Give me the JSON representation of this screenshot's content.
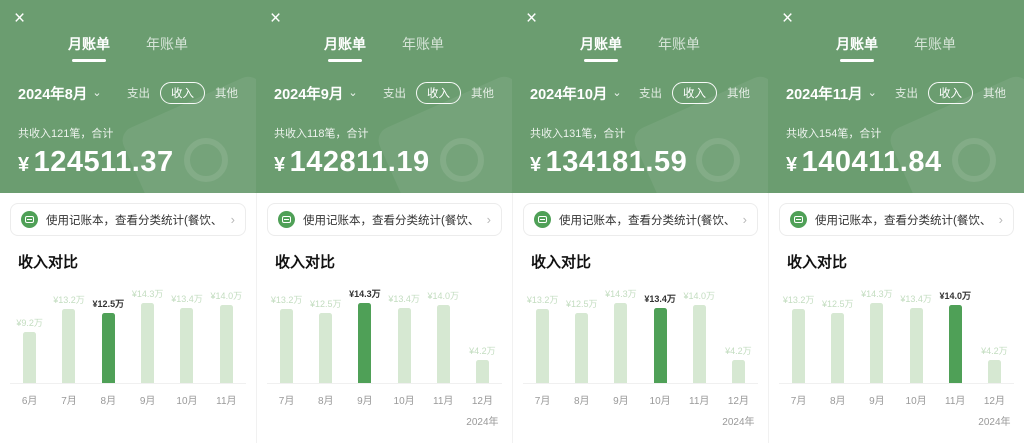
{
  "shared": {
    "icons": {
      "close": "×",
      "chevron_down": "⌄",
      "chevron_right": "›"
    },
    "tabs": {
      "monthly": "月账单",
      "yearly": "年账单"
    },
    "filters": {
      "expense": "支出",
      "income": "收入",
      "other": "其他"
    },
    "banner": {
      "text": "使用记账本，查看分类统计(餐饮、交通等)"
    },
    "section_title": "收入对比",
    "currency": "¥"
  },
  "colors": {
    "header_green": "#6b9d70",
    "accent_green": "#4fa057",
    "light_bar_green": "#d6e8d2",
    "faint_label_green": "#c3ddc0"
  },
  "panels": [
    {
      "date": "2024年8月",
      "summary": "共收入121笔，合计",
      "amount": "124511.37",
      "chart": {
        "months": [
          "6月",
          "7月",
          "8月",
          "9月",
          "10月",
          "11月"
        ],
        "labels": [
          "¥9.2万",
          "¥13.2万",
          "¥12.5万",
          "¥14.3万",
          "¥13.4万",
          "¥14.0万"
        ],
        "values": [
          9.2,
          13.2,
          12.5,
          14.3,
          13.4,
          14.0
        ],
        "highlight": 2,
        "year_label": ""
      }
    },
    {
      "date": "2024年9月",
      "summary": "共收入118笔，合计",
      "amount": "142811.19",
      "chart": {
        "months": [
          "7月",
          "8月",
          "9月",
          "10月",
          "11月",
          "12月"
        ],
        "labels": [
          "¥13.2万",
          "¥12.5万",
          "¥14.3万",
          "¥13.4万",
          "¥14.0万",
          "¥4.2万"
        ],
        "values": [
          13.2,
          12.5,
          14.3,
          13.4,
          14.0,
          4.2
        ],
        "highlight": 2,
        "year_label": "2024年"
      }
    },
    {
      "date": "2024年10月",
      "summary": "共收入131笔，合计",
      "amount": "134181.59",
      "chart": {
        "months": [
          "7月",
          "8月",
          "9月",
          "10月",
          "11月",
          "12月"
        ],
        "labels": [
          "¥13.2万",
          "¥12.5万",
          "¥14.3万",
          "¥13.4万",
          "¥14.0万",
          "¥4.2万"
        ],
        "values": [
          13.2,
          12.5,
          14.3,
          13.4,
          14.0,
          4.2
        ],
        "highlight": 3,
        "year_label": "2024年"
      }
    },
    {
      "date": "2024年11月",
      "summary": "共收入154笔，合计",
      "amount": "140411.84",
      "chart": {
        "months": [
          "7月",
          "8月",
          "9月",
          "10月",
          "11月",
          "12月"
        ],
        "labels": [
          "¥13.2万",
          "¥12.5万",
          "¥14.3万",
          "¥13.4万",
          "¥14.0万",
          "¥4.2万"
        ],
        "values": [
          13.2,
          12.5,
          14.3,
          13.4,
          14.0,
          4.2
        ],
        "highlight": 4,
        "year_label": "2024年"
      }
    }
  ],
  "chart_data": [
    {
      "type": "bar",
      "title": "收入对比 (2024年8月账单)",
      "categories": [
        "6月",
        "7月",
        "8月",
        "9月",
        "10月",
        "11月"
      ],
      "values": [
        9.2,
        13.2,
        12.5,
        14.3,
        13.4,
        14.0
      ],
      "unit": "万",
      "highlight_category": "8月",
      "ylim": [
        0,
        14.3
      ]
    },
    {
      "type": "bar",
      "title": "收入对比 (2024年9月账单)",
      "categories": [
        "7月",
        "8月",
        "9月",
        "10月",
        "11月",
        "12月"
      ],
      "values": [
        13.2,
        12.5,
        14.3,
        13.4,
        14.0,
        4.2
      ],
      "unit": "万",
      "highlight_category": "9月",
      "ylim": [
        0,
        14.3
      ]
    },
    {
      "type": "bar",
      "title": "收入对比 (2024年10月账单)",
      "categories": [
        "7月",
        "8月",
        "9月",
        "10月",
        "11月",
        "12月"
      ],
      "values": [
        13.2,
        12.5,
        14.3,
        13.4,
        14.0,
        4.2
      ],
      "unit": "万",
      "highlight_category": "10月",
      "ylim": [
        0,
        14.3
      ]
    },
    {
      "type": "bar",
      "title": "收入对比 (2024年11月账单)",
      "categories": [
        "7月",
        "8月",
        "9月",
        "10月",
        "11月",
        "12月"
      ],
      "values": [
        13.2,
        12.5,
        14.3,
        13.4,
        14.0,
        4.2
      ],
      "unit": "万",
      "highlight_category": "11月",
      "ylim": [
        0,
        14.3
      ]
    }
  ]
}
